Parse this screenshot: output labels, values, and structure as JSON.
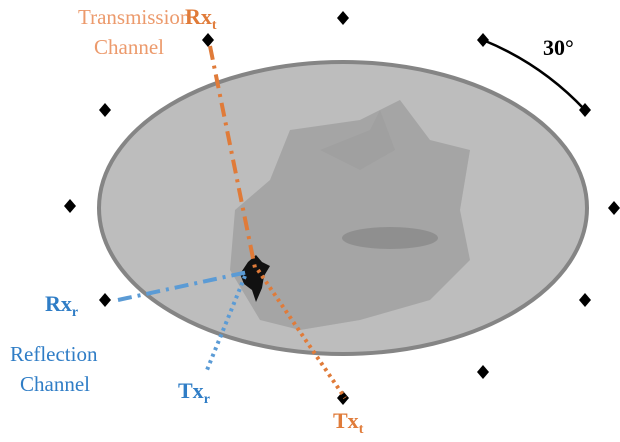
{
  "labels": {
    "transmission_channel": [
      "Transmission",
      "Channel"
    ],
    "rx_t": {
      "main": "Rx",
      "sub": "t"
    },
    "angle": "30°",
    "rx_r": {
      "main": "Rx",
      "sub": "r"
    },
    "reflection_channel": [
      "Reflection",
      "Channel"
    ],
    "tx_r": {
      "main": "Tx",
      "sub": "r"
    },
    "tx_t": {
      "main": "Tx",
      "sub": "t"
    }
  }
}
